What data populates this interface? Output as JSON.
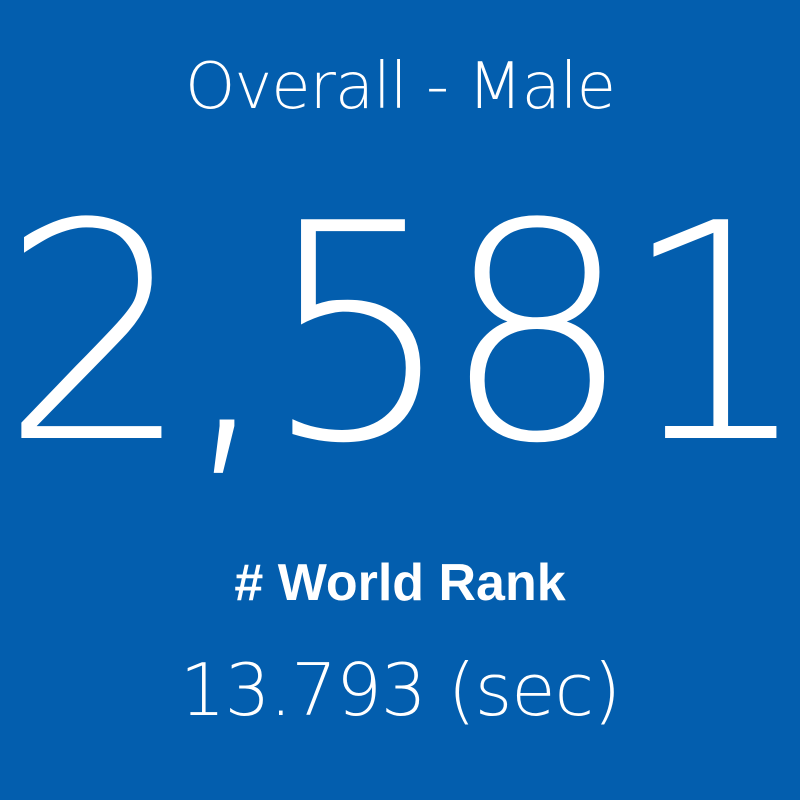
{
  "tile": {
    "title": "Overall - Male",
    "rank": "2,581",
    "label": "# World Rank",
    "time": "13.793 (sec)"
  }
}
